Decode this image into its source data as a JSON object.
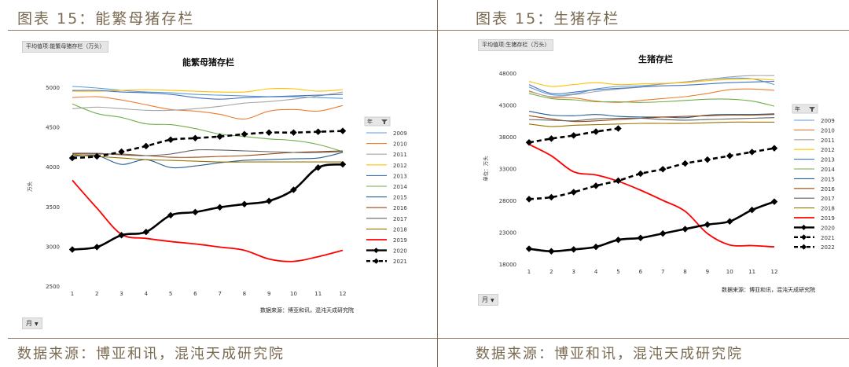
{
  "left": {
    "header": "图表 15：能繁母猪存栏",
    "field_chip": "平均值项:能繁母猪存栏（万头）",
    "dropdown_label": "月",
    "footer": "数据来源：博亚和讯，混沌天成研究院",
    "chart_data": {
      "type": "line",
      "title": "能繁母猪存栏",
      "xlabel": "",
      "ylabel": "万头",
      "categories": [
        "1",
        "2",
        "3",
        "4",
        "5",
        "6",
        "7",
        "8",
        "9",
        "10",
        "11",
        "12"
      ],
      "ylim": [
        2500,
        5000
      ],
      "yticks": [
        2500,
        3000,
        3500,
        4000,
        4500,
        5000
      ],
      "source_note": "数据来源：博亚和讯，混沌天成研究院",
      "legend_title": "年",
      "legend_position": "right",
      "series": [
        {
          "name": "2009",
          "color": "#5b9bd5",
          "values": [
            5010,
            4990,
            4960,
            4940,
            4930,
            4910,
            4900,
            4890,
            4880,
            4880,
            4870,
            4860
          ]
        },
        {
          "name": "2010",
          "color": "#ed7d31",
          "values": [
            4870,
            4880,
            4840,
            4780,
            4720,
            4700,
            4660,
            4600,
            4700,
            4720,
            4700,
            4770
          ]
        },
        {
          "name": "2011",
          "color": "#a5a5a5",
          "values": [
            4730,
            4750,
            4730,
            4710,
            4710,
            4730,
            4760,
            4800,
            4820,
            4850,
            4890,
            4940
          ]
        },
        {
          "name": "2012",
          "color": "#ffc000",
          "values": [
            4950,
            4950,
            4960,
            4970,
            4960,
            4950,
            4940,
            4940,
            4980,
            4980,
            4950,
            4970
          ]
        },
        {
          "name": "2013",
          "color": "#4472c4",
          "values": [
            4960,
            4960,
            4940,
            4930,
            4910,
            4870,
            4850,
            4870,
            4880,
            4890,
            4900,
            4910
          ]
        },
        {
          "name": "2014",
          "color": "#70ad47",
          "values": [
            4790,
            4670,
            4620,
            4540,
            4530,
            4480,
            4410,
            4380,
            4350,
            4330,
            4280,
            4190
          ]
        },
        {
          "name": "2015",
          "color": "#255e91",
          "values": [
            4130,
            4140,
            4030,
            4090,
            3990,
            4010,
            4050,
            4080,
            4090,
            4100,
            4110,
            4180
          ]
        },
        {
          "name": "2016",
          "color": "#9e480e",
          "values": [
            4160,
            4160,
            4160,
            4140,
            4120,
            4120,
            4130,
            4140,
            4160,
            4180,
            4190,
            4200
          ]
        },
        {
          "name": "2017",
          "color": "#636363",
          "values": [
            4170,
            4170,
            4150,
            4140,
            4160,
            4210,
            4210,
            4200,
            4190,
            4180,
            4180,
            4190
          ]
        },
        {
          "name": "2018",
          "color": "#997300",
          "values": [
            4150,
            4130,
            4110,
            4090,
            4080,
            4070,
            4060,
            4060,
            4060,
            4060,
            4060,
            4060
          ]
        },
        {
          "name": "2019",
          "color": "#ff0000",
          "values": [
            3830,
            3480,
            3150,
            3100,
            3060,
            3030,
            2990,
            2950,
            2840,
            2810,
            2870,
            2950
          ]
        },
        {
          "name": "2020",
          "color": "#000000",
          "values": [
            2960,
            2990,
            3140,
            3180,
            3390,
            3430,
            3490,
            3530,
            3570,
            3710,
            3990,
            4030
          ]
        },
        {
          "name": "2021",
          "color": "#000000",
          "dashed": true,
          "values": [
            4110,
            4130,
            4190,
            4260,
            4340,
            4360,
            4380,
            4410,
            4430,
            4430,
            4440,
            4450
          ]
        }
      ]
    }
  },
  "right": {
    "header": "图表 15：生猪存栏",
    "field_chip": "平均值项:生猪存栏（万头）",
    "dropdown_label": "月",
    "footer": "数据来源：博亚和讯，混沌天成研究院",
    "chart_data": {
      "type": "line",
      "title": "生猪存栏",
      "xlabel": "",
      "ylabel": "单位：万头",
      "categories": [
        "1",
        "2",
        "3",
        "4",
        "5",
        "6",
        "7",
        "8",
        "9",
        "10",
        "11",
        "12"
      ],
      "ylim": [
        18000,
        48000
      ],
      "yticks": [
        18000,
        23000,
        28000,
        33000,
        38000,
        43000,
        48000
      ],
      "source_note": "数据来源：博亚和讯，混沌天成研究院",
      "legend_title": "年",
      "legend_position": "right",
      "series": [
        {
          "name": "2009",
          "color": "#5b9bd5",
          "values": [
            45800,
            44600,
            44700,
            45500,
            45900,
            46000,
            46300,
            46600,
            47000,
            47200,
            47100,
            46200
          ]
        },
        {
          "name": "2010",
          "color": "#ed7d31",
          "values": [
            45200,
            44200,
            44100,
            43600,
            43400,
            43700,
            44000,
            44300,
            44800,
            45400,
            45500,
            45300
          ]
        },
        {
          "name": "2011",
          "color": "#a5a5a5",
          "values": [
            45100,
            44300,
            44600,
            45100,
            45500,
            45800,
            46300,
            46600,
            47000,
            47400,
            47600,
            47600
          ]
        },
        {
          "name": "2012",
          "color": "#ffc000",
          "values": [
            46700,
            45900,
            46200,
            46500,
            46200,
            46300,
            46400,
            46500,
            46800,
            47000,
            47100,
            46900
          ]
        },
        {
          "name": "2013",
          "color": "#4472c4",
          "values": [
            46200,
            44800,
            45000,
            45400,
            45600,
            45800,
            46000,
            46100,
            46300,
            46500,
            46600,
            46700
          ]
        },
        {
          "name": "2014",
          "color": "#70ad47",
          "values": [
            44800,
            44000,
            43800,
            43500,
            43500,
            43400,
            43500,
            43700,
            43900,
            43900,
            43600,
            42800
          ]
        },
        {
          "name": "2015",
          "color": "#255e91",
          "values": [
            42000,
            41400,
            41300,
            41500,
            41200,
            41100,
            41100,
            41000,
            41400,
            41500,
            41500,
            41600
          ]
        },
        {
          "name": "2016",
          "color": "#9e480e",
          "values": [
            41300,
            40800,
            40400,
            40500,
            40700,
            40900,
            41100,
            41200,
            41300,
            41400,
            41400,
            41500
          ]
        },
        {
          "name": "2017",
          "color": "#636363",
          "values": [
            40700,
            40600,
            40500,
            40800,
            40900,
            40900,
            40700,
            40600,
            40700,
            40800,
            40900,
            41000
          ]
        },
        {
          "name": "2018",
          "color": "#997300",
          "values": [
            40000,
            39600,
            39800,
            39900,
            40000,
            40100,
            40100,
            40100,
            40200,
            40300,
            40300,
            40300
          ]
        },
        {
          "name": "2019",
          "color": "#ff0000",
          "values": [
            36800,
            35000,
            32500,
            32000,
            31000,
            29600,
            28000,
            26300,
            22800,
            21000,
            20900,
            20700
          ]
        },
        {
          "name": "2020",
          "color": "#000000",
          "values": [
            20400,
            20000,
            20300,
            20700,
            21800,
            22100,
            22800,
            23500,
            24200,
            24700,
            26500,
            27800
          ]
        },
        {
          "name": "2021",
          "color": "#000000",
          "dashed": true,
          "values": [
            28200,
            28500,
            29300,
            30300,
            31100,
            32200,
            32900,
            33800,
            34400,
            35000,
            35600,
            36200
          ]
        },
        {
          "name": "2022",
          "color": "#000000",
          "dashed": true,
          "values": [
            37100,
            37700,
            38200,
            38800,
            39300,
            null,
            null,
            null,
            null,
            null,
            null,
            null
          ]
        }
      ]
    }
  }
}
